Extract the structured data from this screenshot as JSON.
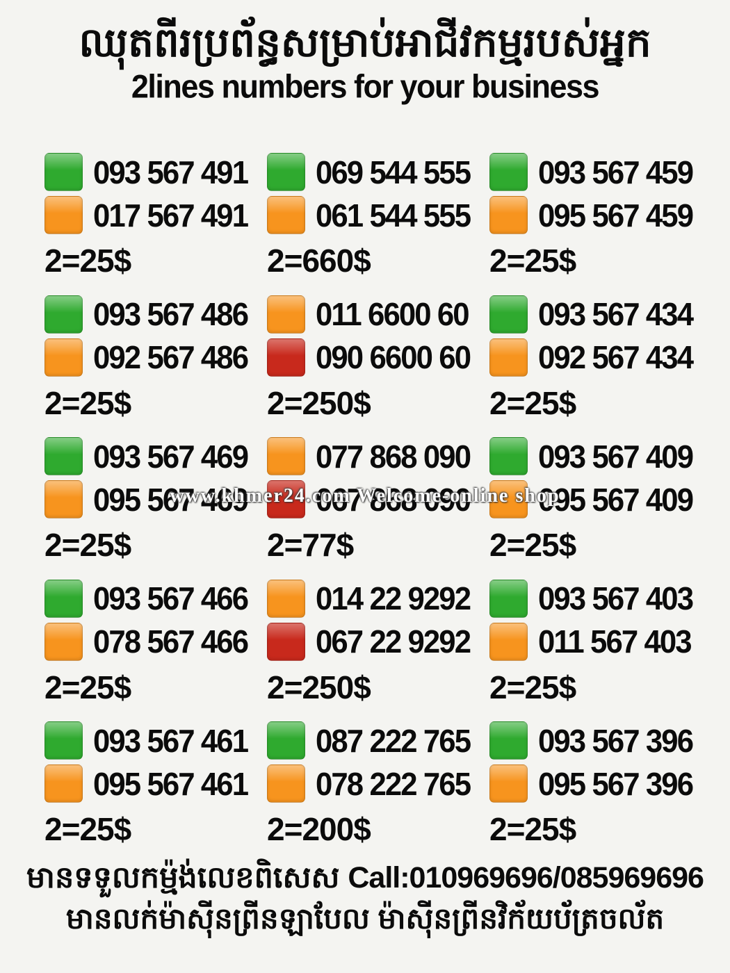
{
  "header": {
    "title_khmer": "ឈុតពីរប្រព័ន្ធសម្រាប់អាជីវកម្មរបស់អ្នក",
    "subtitle_english": "2lines numbers for your business"
  },
  "colors": {
    "background": "#f4f4f1",
    "text": "#0b0b0b",
    "green": "#2faa2f",
    "orange": "#f7941e",
    "red": "#c8291c"
  },
  "watermark_text": "www.khmer24.com Welcome-online shop",
  "listings": [
    {
      "lines": [
        {
          "color": "green",
          "number": "093 567 491"
        },
        {
          "color": "orange",
          "number": "017 567 491"
        }
      ],
      "price": "2=25$"
    },
    {
      "lines": [
        {
          "color": "green",
          "number": "069 544 555"
        },
        {
          "color": "orange",
          "number": "061 544 555"
        }
      ],
      "price": "2=660$"
    },
    {
      "lines": [
        {
          "color": "green",
          "number": "093 567 459"
        },
        {
          "color": "orange",
          "number": "095 567 459"
        }
      ],
      "price": "2=25$"
    },
    {
      "lines": [
        {
          "color": "green",
          "number": "093 567 486"
        },
        {
          "color": "orange",
          "number": "092 567 486"
        }
      ],
      "price": "2=25$"
    },
    {
      "lines": [
        {
          "color": "orange",
          "number": "011 6600 60"
        },
        {
          "color": "red",
          "number": "090 6600 60"
        }
      ],
      "price": "2=250$"
    },
    {
      "lines": [
        {
          "color": "green",
          "number": "093 567 434"
        },
        {
          "color": "orange",
          "number": "092 567 434"
        }
      ],
      "price": "2=25$"
    },
    {
      "lines": [
        {
          "color": "green",
          "number": "093 567 469"
        },
        {
          "color": "orange",
          "number": "095 567 469"
        }
      ],
      "price": "2=25$"
    },
    {
      "lines": [
        {
          "color": "orange",
          "number": "077 868 090"
        },
        {
          "color": "red",
          "number": "067 868 090"
        }
      ],
      "price": "2=77$"
    },
    {
      "lines": [
        {
          "color": "green",
          "number": "093 567 409"
        },
        {
          "color": "orange",
          "number": "095 567 409"
        }
      ],
      "price": "2=25$"
    },
    {
      "lines": [
        {
          "color": "green",
          "number": "093 567 466"
        },
        {
          "color": "orange",
          "number": "078 567 466"
        }
      ],
      "price": "2=25$"
    },
    {
      "lines": [
        {
          "color": "orange",
          "number": "014 22 9292"
        },
        {
          "color": "red",
          "number": "067 22 9292"
        }
      ],
      "price": "2=250$"
    },
    {
      "lines": [
        {
          "color": "green",
          "number": "093 567 403"
        },
        {
          "color": "orange",
          "number": "011 567 403"
        }
      ],
      "price": "2=25$"
    },
    {
      "lines": [
        {
          "color": "green",
          "number": "093 567 461"
        },
        {
          "color": "orange",
          "number": "095 567 461"
        }
      ],
      "price": "2=25$"
    },
    {
      "lines": [
        {
          "color": "green",
          "number": "087 222 765"
        },
        {
          "color": "orange",
          "number": "078 222 765"
        }
      ],
      "price": "2=200$"
    },
    {
      "lines": [
        {
          "color": "green",
          "number": "093 567 396"
        },
        {
          "color": "orange",
          "number": "095 567 396"
        }
      ],
      "price": "2=25$"
    }
  ],
  "footer": {
    "line1_khmer": "មានទទួលកម្ម៉ង់លេខពិសេស",
    "line1_contact": "Call:010969696/085969696",
    "line2_khmer": "មានលក់ម៉ាស៊ីនព្រីនឡាបែល ម៉ាស៊ីនព្រីនវិក័យប័ត្រចល័ត"
  }
}
